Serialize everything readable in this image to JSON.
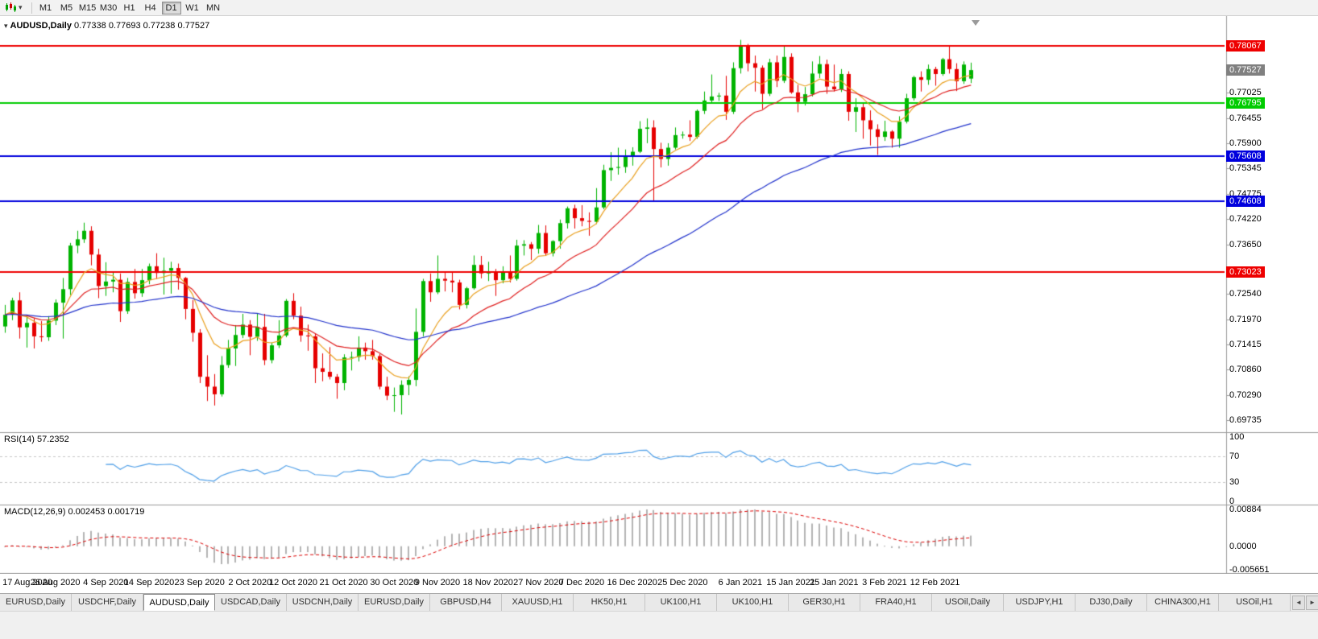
{
  "toolbar": {
    "timeframes": [
      "M1",
      "M5",
      "M15",
      "M30",
      "H1",
      "H4",
      "D1",
      "W1",
      "MN"
    ],
    "active": "D1"
  },
  "icons": {
    "dropdown": "▾",
    "collapse": "▾",
    "scroll_left": "◄",
    "scroll_right": "►"
  },
  "chart": {
    "symbol_period": "AUDUSD,Daily",
    "ohlc": "0.77338 0.77693 0.77238 0.77527"
  },
  "panes": {
    "rsi": {
      "label": "RSI(14)",
      "value": "57.2352",
      "scale": [
        "100",
        "70",
        "30",
        "0"
      ]
    },
    "macd": {
      "label": "MACD(12,26,9)",
      "value_main": "0.002453",
      "value_signal": "0.001719",
      "scale": [
        "0.00884",
        "0.0000",
        "-0.005651"
      ]
    }
  },
  "price_axis": {
    "ticks": [
      "0.77025",
      "0.76455",
      "0.75900",
      "0.75345",
      "0.74775",
      "0.74220",
      "0.73650",
      "0.72540",
      "0.71970",
      "0.71415",
      "0.70860",
      "0.70290",
      "0.69735"
    ],
    "line_labels": [
      {
        "text": "0.78067",
        "color": "#ee0000"
      },
      {
        "text": "0.77527",
        "color": "#808080"
      },
      {
        "text": "0.76795",
        "color": "#00cc00"
      },
      {
        "text": "0.75608",
        "color": "#0000dd"
      },
      {
        "text": "0.74608",
        "color": "#0000dd"
      },
      {
        "text": "0.73023",
        "color": "#ee0000"
      }
    ]
  },
  "chart_data": {
    "type": "candlestick",
    "symbol": "AUDUSD",
    "timeframe": "Daily",
    "current_bar": {
      "open": 0.77338,
      "high": 0.77693,
      "low": 0.77238,
      "close": 0.77527
    },
    "price_range": {
      "top": 0.7864,
      "bottom": 0.69556
    },
    "hlines": [
      {
        "value": 0.78067,
        "color": "#ee0000"
      },
      {
        "value": 0.76795,
        "color": "#00cc00"
      },
      {
        "value": 0.75608,
        "color": "#0000dd"
      },
      {
        "value": 0.74608,
        "color": "#0000dd"
      },
      {
        "value": 0.73023,
        "color": "#ee0000"
      }
    ],
    "price_marker": {
      "value": 0.77527,
      "color": "#808080"
    },
    "moving_averages": [
      {
        "type": "ema",
        "period": 8,
        "color": "#eaa01e"
      },
      {
        "type": "ema",
        "period": 18,
        "color": "#e02020"
      },
      {
        "type": "ema",
        "period": 55,
        "color": "#2233cc"
      }
    ],
    "rsi": {
      "period": 14,
      "current": 57.2352,
      "levels": [
        70,
        30
      ],
      "range": [
        0,
        100
      ],
      "color": "#4f9fe8"
    },
    "macd": {
      "fast": 12,
      "slow": 26,
      "signal": 9,
      "current_main": 0.002453,
      "current_signal": 0.001719,
      "range": [
        -0.005651,
        0.00884
      ],
      "histogram_color": "#b4b4b4",
      "signal_color": "#dd0000"
    },
    "x_axis_labels": [
      {
        "text": "17 Aug 2020",
        "bar": 0
      },
      {
        "text": "26 Aug 2020",
        "bar": 7
      },
      {
        "text": "4 Sep 2020",
        "bar": 14
      },
      {
        "text": "14 Sep 2020",
        "bar": 20
      },
      {
        "text": "23 Sep 2020",
        "bar": 27
      },
      {
        "text": "2 Oct 2020",
        "bar": 34
      },
      {
        "text": "12 Oct 2020",
        "bar": 40
      },
      {
        "text": "21 Oct 2020",
        "bar": 47
      },
      {
        "text": "30 Oct 2020",
        "bar": 54
      },
      {
        "text": "9 Nov 2020",
        "bar": 60
      },
      {
        "text": "18 Nov 2020",
        "bar": 67
      },
      {
        "text": "27 Nov 2020",
        "bar": 74
      },
      {
        "text": "7 Dec 2020",
        "bar": 80
      },
      {
        "text": "16 Dec 2020",
        "bar": 87
      },
      {
        "text": "25 Dec 2020",
        "bar": 94
      },
      {
        "text": "6 Jan 2021",
        "bar": 102
      },
      {
        "text": "15 Jan 2021",
        "bar": 109
      },
      {
        "text": "25 Jan 2021",
        "bar": 115
      },
      {
        "text": "3 Feb 2021",
        "bar": 122
      },
      {
        "text": "12 Feb 2021",
        "bar": 129
      }
    ],
    "candles": [
      [
        0.7182,
        0.723,
        0.7168,
        0.7208
      ],
      [
        0.7208,
        0.7246,
        0.7196,
        0.724
      ],
      [
        0.724,
        0.7258,
        0.7155,
        0.718
      ],
      [
        0.718,
        0.7205,
        0.7135,
        0.719
      ],
      [
        0.719,
        0.72,
        0.7133,
        0.716
      ],
      [
        0.716,
        0.7194,
        0.7148,
        0.7158
      ],
      [
        0.7158,
        0.7205,
        0.715,
        0.7195
      ],
      [
        0.7195,
        0.7242,
        0.7185,
        0.7235
      ],
      [
        0.7235,
        0.729,
        0.7155,
        0.7265
      ],
      [
        0.7265,
        0.7368,
        0.7252,
        0.7362
      ],
      [
        0.7362,
        0.7395,
        0.7345,
        0.7376
      ],
      [
        0.7376,
        0.7413,
        0.7368,
        0.7395
      ],
      [
        0.7395,
        0.7405,
        0.7318,
        0.7342
      ],
      [
        0.7342,
        0.7355,
        0.7245,
        0.7272
      ],
      [
        0.7272,
        0.7325,
        0.725,
        0.7282
      ],
      [
        0.7282,
        0.7302,
        0.7258,
        0.7286
      ],
      [
        0.7286,
        0.73,
        0.7192,
        0.7216
      ],
      [
        0.7216,
        0.729,
        0.721,
        0.7281
      ],
      [
        0.7281,
        0.731,
        0.7244,
        0.7256
      ],
      [
        0.7256,
        0.731,
        0.7248,
        0.7285
      ],
      [
        0.7285,
        0.7322,
        0.7276,
        0.7316
      ],
      [
        0.7316,
        0.7345,
        0.7288,
        0.7301
      ],
      [
        0.7301,
        0.7335,
        0.7253,
        0.7306
      ],
      [
        0.7306,
        0.7326,
        0.7255,
        0.7312
      ],
      [
        0.7312,
        0.7322,
        0.7264,
        0.729
      ],
      [
        0.729,
        0.7292,
        0.7198,
        0.7221
      ],
      [
        0.7221,
        0.7241,
        0.7148,
        0.7168
      ],
      [
        0.7168,
        0.7176,
        0.7056,
        0.707
      ],
      [
        0.707,
        0.7118,
        0.7016,
        0.7048
      ],
      [
        0.7048,
        0.7076,
        0.7006,
        0.7031
      ],
      [
        0.7031,
        0.7116,
        0.7026,
        0.7096
      ],
      [
        0.7096,
        0.7152,
        0.709,
        0.7133
      ],
      [
        0.7133,
        0.7185,
        0.7094,
        0.7163
      ],
      [
        0.7163,
        0.721,
        0.7156,
        0.7186
      ],
      [
        0.7186,
        0.7196,
        0.7118,
        0.7159
      ],
      [
        0.7159,
        0.721,
        0.715,
        0.7181
      ],
      [
        0.7181,
        0.721,
        0.7096,
        0.7107
      ],
      [
        0.7107,
        0.7146,
        0.71,
        0.714
      ],
      [
        0.714,
        0.7196,
        0.7134,
        0.7162
      ],
      [
        0.7162,
        0.7243,
        0.7158,
        0.7239
      ],
      [
        0.7239,
        0.7256,
        0.7198,
        0.7206
      ],
      [
        0.7206,
        0.7226,
        0.7148,
        0.7162
      ],
      [
        0.7162,
        0.7186,
        0.7128,
        0.716
      ],
      [
        0.716,
        0.7166,
        0.7056,
        0.7089
      ],
      [
        0.7089,
        0.7122,
        0.706,
        0.7081
      ],
      [
        0.7081,
        0.7136,
        0.7064,
        0.707
      ],
      [
        0.707,
        0.7076,
        0.7021,
        0.7056
      ],
      [
        0.7056,
        0.712,
        0.704,
        0.7113
      ],
      [
        0.7113,
        0.7126,
        0.7084,
        0.7114
      ],
      [
        0.7114,
        0.716,
        0.7104,
        0.7135
      ],
      [
        0.7135,
        0.7146,
        0.7108,
        0.7127
      ],
      [
        0.7127,
        0.7152,
        0.7108,
        0.7116
      ],
      [
        0.7116,
        0.7121,
        0.7042,
        0.7048
      ],
      [
        0.7048,
        0.707,
        0.7018,
        0.7028
      ],
      [
        0.7028,
        0.7046,
        0.6992,
        0.7029
      ],
      [
        0.7029,
        0.7062,
        0.6986,
        0.7052
      ],
      [
        0.7052,
        0.7071,
        0.7029,
        0.7063
      ],
      [
        0.7063,
        0.7222,
        0.7049,
        0.717
      ],
      [
        0.717,
        0.7288,
        0.716,
        0.7283
      ],
      [
        0.7283,
        0.73,
        0.7237,
        0.7258
      ],
      [
        0.7258,
        0.734,
        0.7254,
        0.7288
      ],
      [
        0.7288,
        0.7302,
        0.726,
        0.7284
      ],
      [
        0.7284,
        0.7305,
        0.7258,
        0.728
      ],
      [
        0.728,
        0.7286,
        0.722,
        0.723
      ],
      [
        0.723,
        0.727,
        0.7222,
        0.7267
      ],
      [
        0.7267,
        0.734,
        0.7264,
        0.7319
      ],
      [
        0.7319,
        0.7339,
        0.7289,
        0.73
      ],
      [
        0.73,
        0.7326,
        0.7283,
        0.7302
      ],
      [
        0.7302,
        0.731,
        0.725,
        0.7285
      ],
      [
        0.7285,
        0.7316,
        0.7278,
        0.7302
      ],
      [
        0.7302,
        0.734,
        0.728,
        0.7288
      ],
      [
        0.7288,
        0.7375,
        0.7284,
        0.7362
      ],
      [
        0.7362,
        0.7374,
        0.734,
        0.7365
      ],
      [
        0.7365,
        0.737,
        0.733,
        0.7355
      ],
      [
        0.7355,
        0.7408,
        0.7344,
        0.739
      ],
      [
        0.739,
        0.7407,
        0.7339,
        0.7345
      ],
      [
        0.7345,
        0.7374,
        0.7338,
        0.7372
      ],
      [
        0.7372,
        0.742,
        0.7355,
        0.7412
      ],
      [
        0.7412,
        0.7449,
        0.74,
        0.7445
      ],
      [
        0.7445,
        0.7453,
        0.74,
        0.7423
      ],
      [
        0.7423,
        0.7452,
        0.7405,
        0.7417
      ],
      [
        0.7417,
        0.7436,
        0.7384,
        0.7415
      ],
      [
        0.7415,
        0.749,
        0.741,
        0.7447
      ],
      [
        0.7447,
        0.7542,
        0.7443,
        0.753
      ],
      [
        0.753,
        0.757,
        0.7506,
        0.7535
      ],
      [
        0.7535,
        0.758,
        0.752,
        0.7537
      ],
      [
        0.7537,
        0.7576,
        0.7524,
        0.756
      ],
      [
        0.756,
        0.7581,
        0.754,
        0.7571
      ],
      [
        0.7571,
        0.7639,
        0.7568,
        0.7622
      ],
      [
        0.7622,
        0.7645,
        0.759,
        0.7625
      ],
      [
        0.7625,
        0.7641,
        0.7462,
        0.7577
      ],
      [
        0.7577,
        0.7591,
        0.7536,
        0.7555
      ],
      [
        0.7555,
        0.759,
        0.754,
        0.758
      ],
      [
        0.758,
        0.7625,
        0.7576,
        0.7608
      ],
      [
        0.7608,
        0.7616,
        0.76,
        0.7609
      ],
      [
        0.7609,
        0.7641,
        0.7595,
        0.7604
      ],
      [
        0.7604,
        0.7665,
        0.76,
        0.7662
      ],
      [
        0.7662,
        0.7705,
        0.7655,
        0.7685
      ],
      [
        0.7685,
        0.7743,
        0.768,
        0.7694
      ],
      [
        0.7694,
        0.7702,
        0.7684,
        0.7696
      ],
      [
        0.7696,
        0.774,
        0.7642,
        0.766
      ],
      [
        0.766,
        0.777,
        0.7655,
        0.7757
      ],
      [
        0.7757,
        0.782,
        0.7745,
        0.7805
      ],
      [
        0.7805,
        0.7811,
        0.775,
        0.7768
      ],
      [
        0.7768,
        0.7785,
        0.7705,
        0.7758
      ],
      [
        0.7758,
        0.7763,
        0.7666,
        0.77
      ],
      [
        0.77,
        0.7778,
        0.7695,
        0.777
      ],
      [
        0.777,
        0.7785,
        0.7715,
        0.7729
      ],
      [
        0.7729,
        0.7805,
        0.7724,
        0.7782
      ],
      [
        0.7782,
        0.779,
        0.77,
        0.7703
      ],
      [
        0.7703,
        0.772,
        0.7659,
        0.7682
      ],
      [
        0.7682,
        0.7715,
        0.7674,
        0.7699
      ],
      [
        0.7699,
        0.7772,
        0.7694,
        0.7745
      ],
      [
        0.7745,
        0.7784,
        0.7735,
        0.7766
      ],
      [
        0.7766,
        0.7776,
        0.77,
        0.7716
      ],
      [
        0.7716,
        0.7765,
        0.7705,
        0.771
      ],
      [
        0.771,
        0.7755,
        0.7704,
        0.7744
      ],
      [
        0.7744,
        0.775,
        0.764,
        0.766
      ],
      [
        0.766,
        0.769,
        0.7615,
        0.767
      ],
      [
        0.767,
        0.7681,
        0.76,
        0.7641
      ],
      [
        0.7641,
        0.7663,
        0.7585,
        0.7621
      ],
      [
        0.7621,
        0.7632,
        0.7564,
        0.7604
      ],
      [
        0.7604,
        0.764,
        0.7595,
        0.7616
      ],
      [
        0.7616,
        0.7619,
        0.758,
        0.76
      ],
      [
        0.76,
        0.765,
        0.758,
        0.7638
      ],
      [
        0.7638,
        0.77,
        0.7634,
        0.769
      ],
      [
        0.769,
        0.774,
        0.7685,
        0.7737
      ],
      [
        0.7737,
        0.775,
        0.7705,
        0.7731
      ],
      [
        0.7731,
        0.7765,
        0.772,
        0.7755
      ],
      [
        0.7755,
        0.776,
        0.7718,
        0.7744
      ],
      [
        0.7744,
        0.778,
        0.774,
        0.7777
      ],
      [
        0.7777,
        0.7805,
        0.7745,
        0.7755
      ],
      [
        0.7755,
        0.7768,
        0.7706,
        0.7728
      ],
      [
        0.7728,
        0.7772,
        0.7722,
        0.7765
      ],
      [
        0.77338,
        0.77693,
        0.77238,
        0.77527
      ]
    ],
    "candle_colors": {
      "up": "#00b300",
      "down": "#e60000"
    }
  },
  "tabs": {
    "items": [
      "EURUSD,Daily",
      "USDCHF,Daily",
      "AUDUSD,Daily",
      "USDCAD,Daily",
      "USDCNH,Daily",
      "EURUSD,Daily",
      "GBPUSD,H4",
      "XAUUSD,H1",
      "HK50,H1",
      "UK100,H1",
      "UK100,H1",
      "GER30,H1",
      "FRA40,H1",
      "USOil,Daily",
      "USDJPY,H1",
      "DJ30,Daily",
      "CHINA300,H1",
      "USOil,H1"
    ],
    "active_index": 2
  }
}
